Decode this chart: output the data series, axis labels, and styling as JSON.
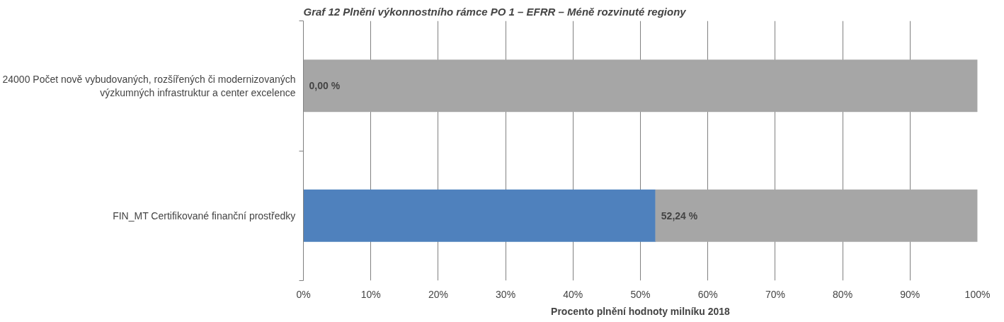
{
  "chart_data": {
    "type": "bar",
    "orientation": "horizontal",
    "stacked": true,
    "title": "Graf 12 Plnění výkonnostního rámce PO 1 – EFRR – Méně rozvinuté regiony",
    "xlabel": "Procento plnění hodnoty milníku 2018",
    "categories": [
      "24000 Počet nově vybudovaných, rozšířených či modernizovaných výzkumných infrastruktur a center excelence",
      "FIN_MT Certifikované finanční prostředky"
    ],
    "series": [
      {
        "color": "#4f81bd",
        "values": [
          0,
          52.24
        ],
        "value_labels": [
          "0,00 %",
          "52,24 %"
        ]
      },
      {
        "color": "#a6a6a6",
        "values": [
          100,
          47.76
        ]
      }
    ],
    "xlim": [
      0,
      100
    ],
    "xticks": [
      {
        "value": 0,
        "label": "0%"
      },
      {
        "value": 10,
        "label": "10%"
      },
      {
        "value": 20,
        "label": "20%"
      },
      {
        "value": 30,
        "label": "30%"
      },
      {
        "value": 40,
        "label": "40%"
      },
      {
        "value": 50,
        "label": "50%"
      },
      {
        "value": 60,
        "label": "60%"
      },
      {
        "value": 70,
        "label": "70%"
      },
      {
        "value": 80,
        "label": "80%"
      },
      {
        "value": 90,
        "label": "90%"
      },
      {
        "value": 100,
        "label": "100%"
      }
    ],
    "grid": "x"
  }
}
